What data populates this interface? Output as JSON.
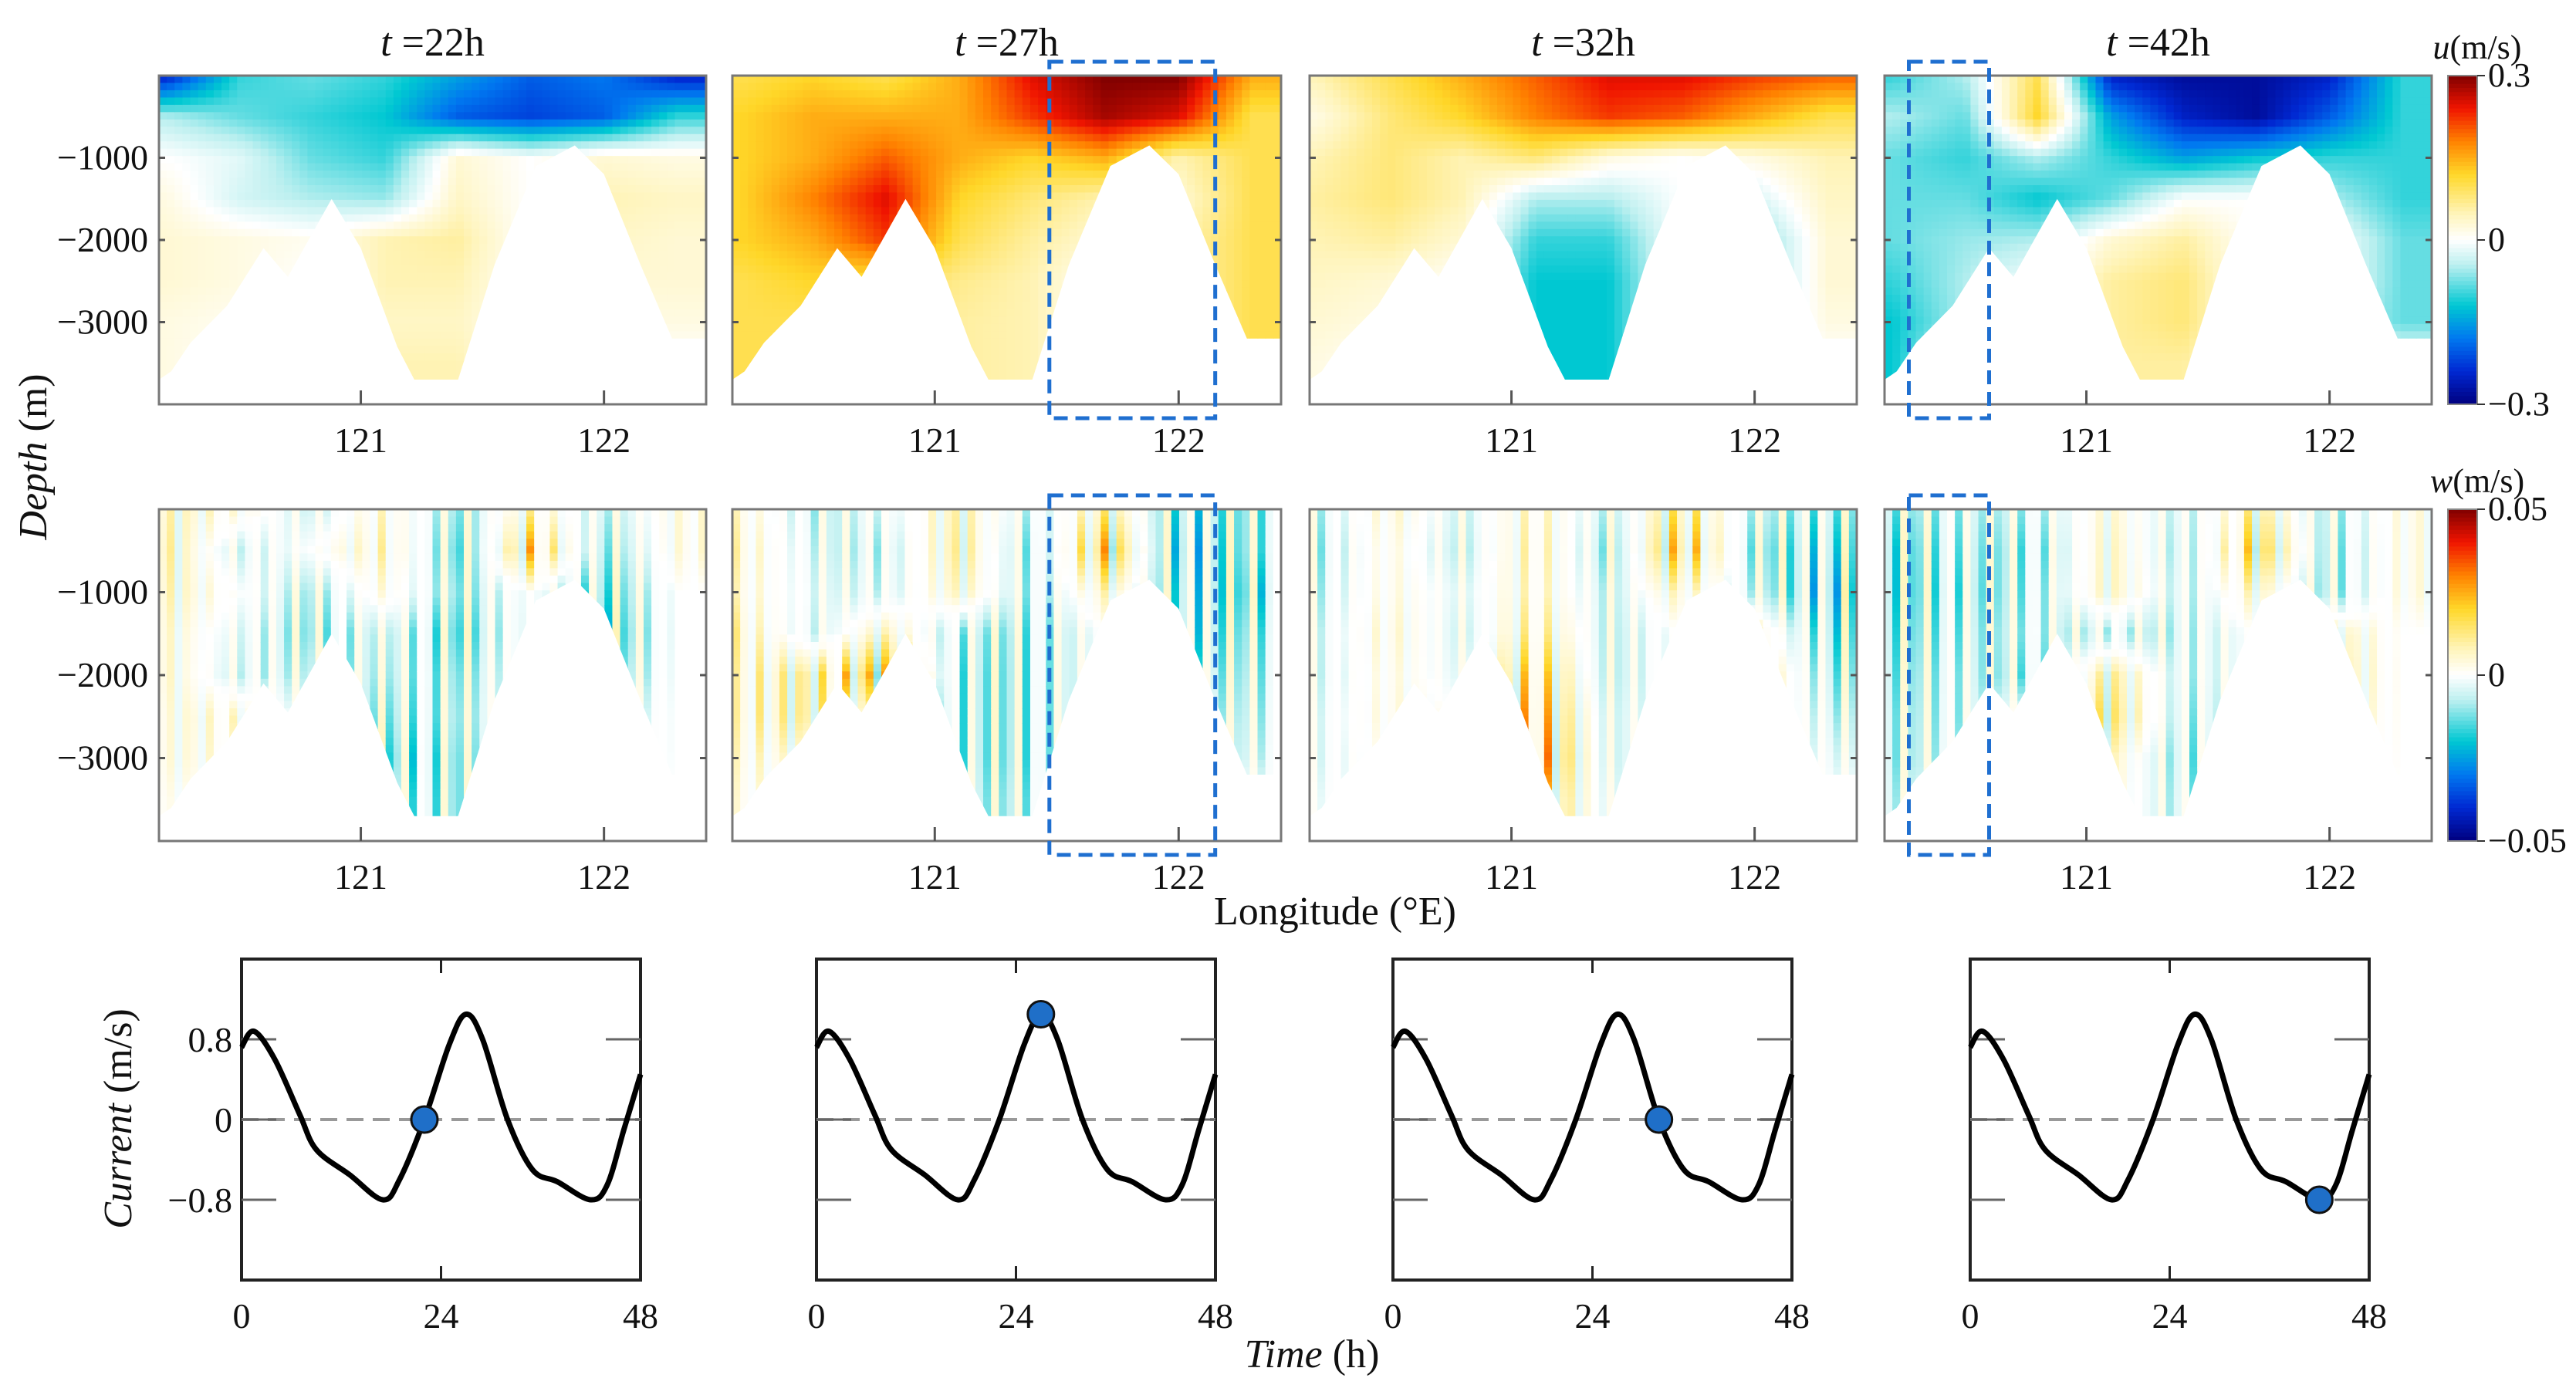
{
  "chart_data": {
    "type": "heatmap",
    "time_unit": "h",
    "times": [
      22,
      27,
      32,
      42
    ],
    "panel_titles": [
      {
        "var": "t",
        "text": " =22h"
      },
      {
        "var": "t",
        "text": " =27h"
      },
      {
        "var": "t",
        "text": " =32h"
      },
      {
        "var": "t",
        "text": " =42h"
      }
    ],
    "depth_axis": {
      "label_italic": "Depth",
      "label_unit": " (m)",
      "ticks": [
        -1000,
        -2000,
        -3000
      ],
      "tick_labels": [
        "−1000",
        "−2000",
        "−3000"
      ],
      "ylim": [
        -4000,
        0
      ]
    },
    "lon_axis": {
      "label": "Longitude (°E)",
      "ticks": [
        121,
        122
      ],
      "tick_labels": [
        "121",
        "122"
      ],
      "xlim": [
        120.17,
        122.42
      ]
    },
    "bathymetry": {
      "lon": [
        120.17,
        120.22,
        120.3,
        120.45,
        120.6,
        120.7,
        120.88,
        121.0,
        121.15,
        121.22,
        121.4,
        121.55,
        121.72,
        121.88,
        122.0,
        122.15,
        122.28,
        122.42
      ],
      "depth": [
        -3700,
        -3600,
        -3250,
        -2800,
        -2100,
        -2450,
        -1500,
        -2100,
        -3300,
        -3700,
        -3700,
        -2300,
        -1100,
        -850,
        -1200,
        -2300,
        -3200,
        -3200
      ]
    },
    "grid": {
      "lon": [
        120.2,
        120.5,
        120.8,
        121.1,
        121.4,
        121.7,
        122.0,
        122.3
      ],
      "depth": [
        0,
        -500,
        -1000,
        -1500,
        -2000,
        -2500,
        -3000,
        -3500
      ]
    },
    "u_field": {
      "title_var": "u",
      "title_unit": "(m/s)",
      "clim": [
        -0.3,
        0.3
      ],
      "colorbar_ticks": [
        "0.3",
        "0",
        "−0.3"
      ],
      "panels": [
        [
          [
            -0.25,
            -0.1,
            -0.08,
            -0.1,
            -0.15,
            -0.2,
            -0.18,
            -0.25
          ],
          [
            -0.05,
            -0.08,
            -0.1,
            -0.12,
            -0.2,
            -0.22,
            -0.2,
            -0.1
          ],
          [
            0.0,
            -0.02,
            -0.08,
            -0.1,
            0.03,
            0,
            0.03,
            0.02
          ],
          [
            0.02,
            -0.03,
            -0.05,
            -0.06,
            0.04,
            0,
            0.05,
            0.04
          ],
          [
            0.03,
            0.02,
            0.01,
            0.05,
            0.06,
            0,
            0.04,
            0.03
          ],
          [
            0.03,
            0.02,
            0,
            0.05,
            0.05,
            0,
            0.03,
            0.03
          ],
          [
            0.02,
            0.01,
            0,
            0.04,
            0.04,
            0,
            0.02,
            0.02
          ],
          [
            0.02,
            0,
            0,
            0.05,
            0.05,
            0,
            0,
            0
          ]
        ],
        [
          [
            0.1,
            0.12,
            0.1,
            0.15,
            0.25,
            0.3,
            0.3,
            0.15
          ],
          [
            0.12,
            0.15,
            0.15,
            0.15,
            0.22,
            0.28,
            0.25,
            0.1
          ],
          [
            0.12,
            0.15,
            0.2,
            0.15,
            0.12,
            0.15,
            0.05,
            0.1
          ],
          [
            0.12,
            0.18,
            0.25,
            0.12,
            0.08,
            0.05,
            0.03,
            0.1
          ],
          [
            0.12,
            0.15,
            0.22,
            0.1,
            0.06,
            0.03,
            0.05,
            0.1
          ],
          [
            0.1,
            0.12,
            0.1,
            0.07,
            0.05,
            0,
            0.05,
            0.1
          ],
          [
            0.1,
            0.1,
            0.08,
            0.06,
            0.05,
            0,
            0.05,
            0.1
          ],
          [
            0.1,
            0.1,
            0.08,
            0.06,
            0.05,
            0,
            0.05,
            0.1
          ]
        ],
        [
          [
            0.05,
            0.1,
            0.15,
            0.2,
            0.25,
            0.25,
            0.22,
            0.2
          ],
          [
            0.02,
            0.08,
            0.12,
            0.18,
            0.22,
            0.2,
            0.15,
            0.1
          ],
          [
            0.05,
            0.08,
            0.05,
            0.08,
            0.02,
            0,
            0.02,
            0.05
          ],
          [
            0.06,
            0.08,
            0.05,
            -0.05,
            -0.05,
            0,
            -0.03,
            0.04
          ],
          [
            0.05,
            0.06,
            0.03,
            -0.1,
            -0.1,
            0,
            -0.08,
            0.03
          ],
          [
            0.04,
            0.03,
            0,
            -0.12,
            -0.12,
            0,
            -0.08,
            0.03
          ],
          [
            0.03,
            0.02,
            0,
            -0.12,
            -0.12,
            0,
            -0.05,
            0.02
          ],
          [
            0.02,
            0,
            0,
            -0.12,
            -0.12,
            0,
            0,
            0
          ]
        ],
        [
          [
            -0.1,
            -0.05,
            0.1,
            -0.25,
            -0.28,
            -0.28,
            -0.25,
            -0.1
          ],
          [
            -0.05,
            -0.08,
            0.12,
            -0.15,
            -0.25,
            -0.28,
            -0.2,
            -0.1
          ],
          [
            -0.08,
            -0.1,
            -0.05,
            -0.1,
            -0.15,
            -0.12,
            -0.1,
            -0.1
          ],
          [
            -0.08,
            -0.08,
            -0.12,
            -0.08,
            0,
            0,
            -0.05,
            -0.1
          ],
          [
            -0.08,
            -0.06,
            -0.05,
            0.03,
            0.06,
            0,
            0,
            -0.08
          ],
          [
            -0.1,
            -0.05,
            0,
            0.06,
            0.08,
            0,
            0,
            -0.08
          ],
          [
            -0.12,
            -0.05,
            0,
            0.06,
            0.08,
            0,
            -0.03,
            -0.08
          ],
          [
            -0.12,
            0,
            0,
            0.06,
            0.06,
            0,
            0,
            0
          ]
        ]
      ]
    },
    "w_field": {
      "title_var": "w",
      "title_unit": "(m/s)",
      "clim": [
        -0.05,
        0.05
      ],
      "colorbar_ticks": [
        "0.05",
        "0",
        "−0.05"
      ],
      "panels": [
        [
          [
            0.004,
            0.002,
            -0.003,
            0.003,
            -0.006,
            0.004,
            -0.004,
            0.002
          ],
          [
            0.005,
            -0.003,
            0,
            0.004,
            -0.008,
            0.01,
            -0.006,
            0.002
          ],
          [
            0.004,
            0,
            -0.005,
            0.002,
            -0.006,
            0,
            -0.008,
            0
          ],
          [
            0.003,
            -0.002,
            -0.006,
            -0.003,
            -0.008,
            0,
            -0.01,
            0
          ],
          [
            0.003,
            -0.003,
            -0.004,
            -0.004,
            -0.006,
            0,
            -0.008,
            0
          ],
          [
            0.002,
            0.003,
            -0.002,
            -0.006,
            -0.005,
            0,
            -0.004,
            0
          ],
          [
            0.002,
            0.002,
            0,
            -0.008,
            -0.006,
            0,
            -0.003,
            0
          ],
          [
            0.001,
            0,
            0,
            -0.006,
            -0.006,
            0,
            0,
            0
          ]
        ],
        [
          [
            0.003,
            -0.004,
            -0.002,
            0.005,
            -0.004,
            0.006,
            -0.008,
            -0.006
          ],
          [
            0.004,
            -0.003,
            -0.004,
            0.006,
            -0.006,
            0.012,
            -0.01,
            -0.006
          ],
          [
            0.003,
            -0.002,
            -0.003,
            0.004,
            -0.005,
            0.004,
            -0.008,
            -0.008
          ],
          [
            0.005,
            -0.003,
            0.004,
            -0.005,
            -0.006,
            0,
            -0.008,
            -0.006
          ],
          [
            0.004,
            0.006,
            0.012,
            -0.006,
            -0.006,
            0,
            -0.006,
            -0.005
          ],
          [
            0.004,
            0.006,
            0.003,
            -0.006,
            -0.006,
            0,
            -0.004,
            -0.004
          ],
          [
            0.003,
            0.002,
            0,
            -0.006,
            -0.006,
            0,
            -0.003,
            -0.003
          ],
          [
            0.002,
            0,
            0,
            -0.005,
            -0.005,
            0,
            0,
            0
          ]
        ],
        [
          [
            -0.004,
            0.003,
            -0.003,
            0.004,
            -0.004,
            0.008,
            -0.004,
            -0.006
          ],
          [
            -0.005,
            0.002,
            -0.004,
            0.005,
            -0.006,
            0.012,
            -0.006,
            -0.008
          ],
          [
            -0.004,
            0.002,
            -0.002,
            0.004,
            -0.004,
            0.004,
            -0.004,
            -0.01
          ],
          [
            -0.003,
            0.003,
            -0.003,
            0.006,
            -0.004,
            0,
            0.004,
            -0.008
          ],
          [
            -0.003,
            0.002,
            -0.002,
            0.01,
            -0.004,
            0,
            0.006,
            -0.006
          ],
          [
            -0.002,
            0.002,
            0,
            0.012,
            -0.003,
            0,
            0.004,
            -0.004
          ],
          [
            -0.002,
            0.001,
            0,
            0.014,
            -0.003,
            0,
            0.002,
            -0.002
          ],
          [
            -0.001,
            0,
            0,
            0.01,
            -0.002,
            0,
            0,
            0
          ]
        ],
        [
          [
            -0.006,
            -0.004,
            -0.004,
            0.003,
            -0.004,
            0.006,
            -0.005,
            0.002
          ],
          [
            -0.008,
            -0.005,
            -0.006,
            0.004,
            -0.005,
            0.01,
            -0.006,
            0.002
          ],
          [
            -0.008,
            -0.006,
            -0.005,
            0.004,
            -0.004,
            0.004,
            -0.006,
            0.002
          ],
          [
            -0.007,
            -0.005,
            -0.004,
            -0.004,
            -0.004,
            0,
            0.004,
            0
          ],
          [
            -0.006,
            -0.004,
            -0.006,
            0.006,
            -0.004,
            0,
            0.005,
            0
          ],
          [
            -0.005,
            -0.004,
            0,
            0.008,
            -0.005,
            0,
            0.004,
            0
          ],
          [
            -0.005,
            -0.003,
            0,
            0.004,
            -0.006,
            0,
            0.002,
            0
          ],
          [
            -0.004,
            0,
            0,
            0.003,
            -0.005,
            0,
            0,
            0
          ]
        ]
      ]
    },
    "highlight_boxes": [
      null,
      {
        "lon": [
          121.47,
          122.15
        ]
      },
      null,
      {
        "lon": [
          120.27,
          120.6
        ]
      }
    ],
    "current_series": {
      "type": "line",
      "ylabel_italic": "Current",
      "ylabel_unit": " (m/s)",
      "xlabel_italic": "Time",
      "xlabel_unit": " (h)",
      "xlim": [
        0,
        48
      ],
      "ylim": [
        -1.6,
        1.6
      ],
      "xticks": [
        0,
        24,
        48
      ],
      "xtick_labels": [
        "0",
        "24",
        "48"
      ],
      "yticks": [
        0.8,
        0,
        -0.8
      ],
      "ytick_labels": [
        "0.8",
        "0",
        "−0.8"
      ],
      "zero_line": true,
      "x": [
        0,
        1.5,
        4,
        7,
        9,
        13,
        17,
        19,
        22,
        25,
        27,
        29,
        32,
        35,
        38,
        42,
        44,
        46,
        48
      ],
      "y": [
        0.72,
        0.88,
        0.6,
        0.05,
        -0.3,
        -0.55,
        -0.8,
        -0.6,
        0.0,
        0.75,
        1.05,
        0.8,
        0.0,
        -0.5,
        -0.62,
        -0.8,
        -0.65,
        -0.1,
        0.45
      ],
      "markers": [
        {
          "t": 22,
          "value": 0.0
        },
        {
          "t": 27,
          "value": 1.05
        },
        {
          "t": 32,
          "value": 0.0
        },
        {
          "t": 42,
          "value": -0.8
        }
      ],
      "marker_color": "#1f6fc8"
    }
  }
}
